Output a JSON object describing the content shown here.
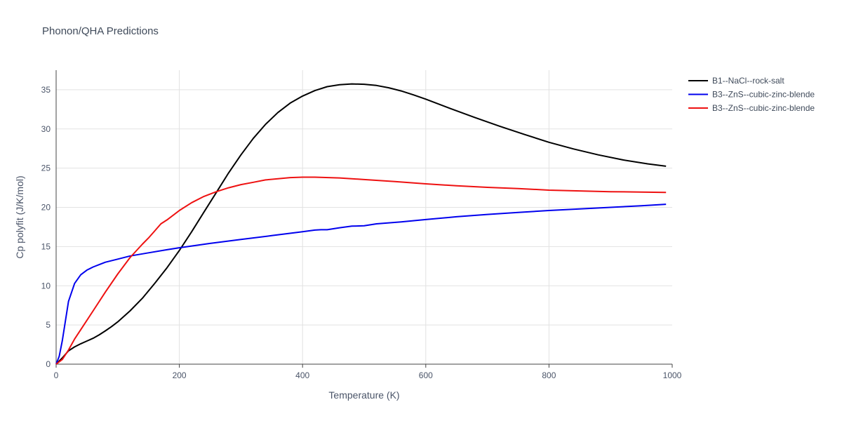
{
  "title": "Phonon/QHA Predictions",
  "chart_data": {
    "type": "line",
    "title": "Phonon/QHA Predictions",
    "xlabel": "Temperature (K)",
    "ylabel": "Cp polyfit (J/K/mol)",
    "xlim": [
      0,
      1000
    ],
    "ylim": [
      0,
      37.5
    ],
    "xticks": [
      0,
      200,
      400,
      600,
      800,
      1000
    ],
    "yticks": [
      0,
      5,
      10,
      15,
      20,
      25,
      30,
      35
    ],
    "grid": true,
    "legend_position": "top-right",
    "series": [
      {
        "name": "B1--NaCl--rock-salt",
        "color": "#000000",
        "x": [
          0,
          10,
          20,
          30,
          40,
          50,
          60,
          70,
          80,
          90,
          100,
          120,
          140,
          160,
          180,
          200,
          220,
          240,
          260,
          280,
          300,
          320,
          340,
          360,
          380,
          400,
          420,
          440,
          460,
          480,
          500,
          520,
          540,
          560,
          580,
          600,
          640,
          680,
          720,
          760,
          800,
          840,
          880,
          920,
          960,
          990
        ],
        "y": [
          0,
          0.8,
          1.7,
          2.2,
          2.6,
          2.95,
          3.3,
          3.75,
          4.25,
          4.8,
          5.4,
          6.8,
          8.4,
          10.3,
          12.3,
          14.5,
          16.9,
          19.4,
          21.9,
          24.4,
          26.7,
          28.8,
          30.6,
          32.1,
          33.3,
          34.2,
          34.9,
          35.4,
          35.65,
          35.75,
          35.7,
          35.55,
          35.25,
          34.85,
          34.35,
          33.8,
          32.6,
          31.45,
          30.35,
          29.3,
          28.3,
          27.45,
          26.7,
          26.05,
          25.55,
          25.25
        ]
      },
      {
        "name": "B3--ZnS--cubic-zinc-blende",
        "color": "#0000ee",
        "x": [
          0,
          5,
          10,
          20,
          30,
          40,
          50,
          60,
          70,
          80,
          100,
          120,
          150,
          180,
          200,
          250,
          300,
          350,
          400,
          420,
          430,
          440,
          460,
          480,
          500,
          520,
          560,
          600,
          650,
          700,
          750,
          800,
          850,
          900,
          950,
          990
        ],
        "y": [
          0,
          1.0,
          3.0,
          8.0,
          10.3,
          11.4,
          12.0,
          12.4,
          12.7,
          13.0,
          13.4,
          13.8,
          14.2,
          14.6,
          14.85,
          15.4,
          15.9,
          16.4,
          16.9,
          17.1,
          17.15,
          17.15,
          17.4,
          17.6,
          17.65,
          17.9,
          18.15,
          18.45,
          18.8,
          19.1,
          19.35,
          19.6,
          19.8,
          20.0,
          20.2,
          20.4
        ]
      },
      {
        "name": "B3--ZnS--cubic-zinc-blende",
        "color": "#ee1111",
        "x": [
          0,
          10,
          20,
          30,
          40,
          60,
          80,
          100,
          120,
          140,
          150,
          160,
          170,
          180,
          200,
          220,
          240,
          260,
          280,
          300,
          320,
          340,
          360,
          380,
          400,
          420,
          460,
          500,
          550,
          600,
          650,
          700,
          750,
          800,
          850,
          900,
          950,
          990
        ],
        "y": [
          0,
          0.6,
          1.8,
          3.2,
          4.4,
          6.8,
          9.2,
          11.5,
          13.6,
          15.3,
          16.1,
          17.0,
          17.9,
          18.4,
          19.6,
          20.6,
          21.4,
          22.0,
          22.5,
          22.9,
          23.2,
          23.5,
          23.65,
          23.8,
          23.85,
          23.85,
          23.75,
          23.55,
          23.3,
          23.0,
          22.75,
          22.55,
          22.4,
          22.2,
          22.1,
          22.0,
          21.95,
          21.9
        ]
      }
    ]
  }
}
